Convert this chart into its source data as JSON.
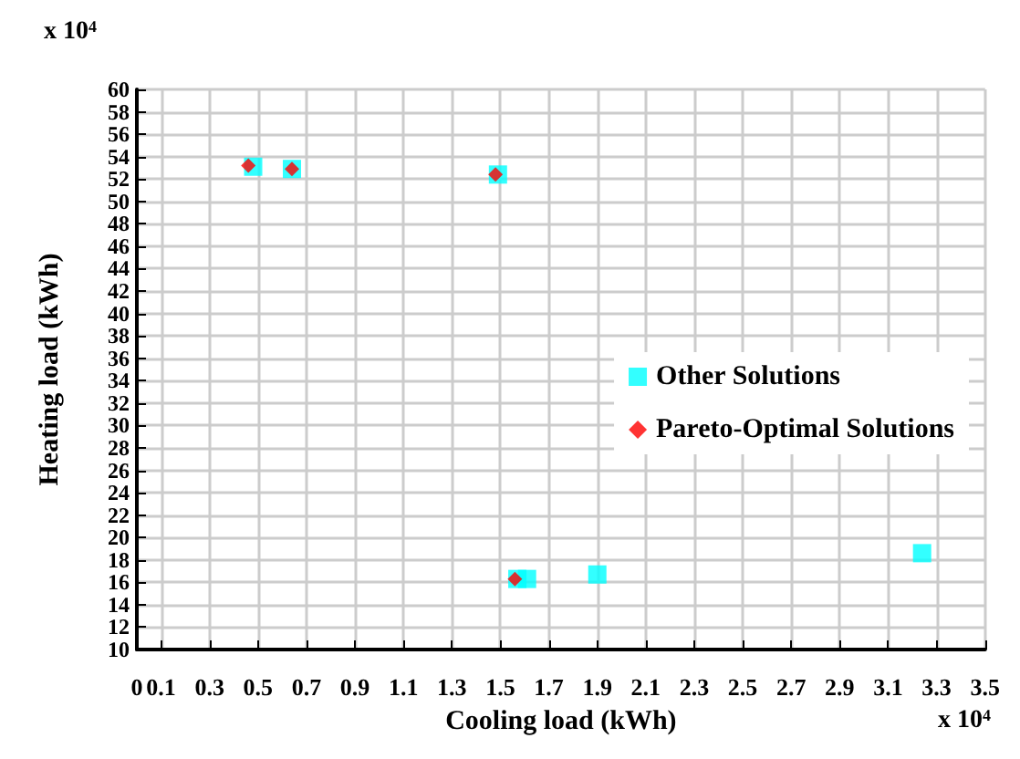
{
  "chart_data": {
    "type": "scatter",
    "xlabel": "Cooling load (kWh)",
    "ylabel": "Heating load (kWh)",
    "annotations": [
      "x 10$^{4}$",
      "x 10$^{4}$"
    ],
    "xlim": [
      0,
      3.5
    ],
    "xticks": [
      0,
      0.1,
      0.3,
      0.5,
      0.7,
      0.9,
      1.1,
      1.3,
      1.5,
      1.7,
      1.9,
      2.1,
      2.3,
      2.5,
      2.7,
      2.9,
      3.1,
      3.3,
      3.5
    ],
    "ylim": [
      10,
      60
    ],
    "yticks": [
      10,
      12,
      14,
      16,
      18,
      20,
      22,
      24,
      26,
      28,
      30,
      32,
      34,
      36,
      38,
      40,
      42,
      44,
      46,
      48,
      50,
      52,
      54,
      56,
      58,
      60
    ],
    "grid": true,
    "legend": "right",
    "series": [
      {
        "name": "Other Solutions",
        "color": "#00ffff",
        "marker": "square",
        "x": [
          0.48,
          0.64,
          1.49,
          1.57,
          1.61,
          1.9,
          3.24
        ],
        "values": [
          53.1,
          52.9,
          52.4,
          16.3,
          16.3,
          16.7,
          18.6
        ]
      },
      {
        "name": "Pareto-Optimal Solutions",
        "color": "#ff0000",
        "marker": "diamond",
        "x": [
          0.46,
          0.64,
          1.48,
          1.56
        ],
        "values": [
          53.2,
          52.9,
          52.4,
          16.3
        ]
      }
    ]
  }
}
